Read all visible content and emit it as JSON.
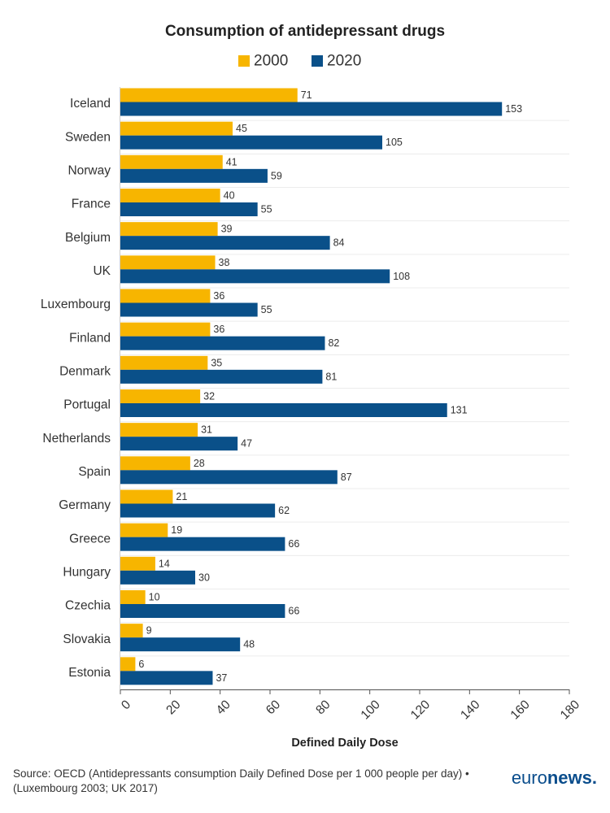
{
  "chart_data": {
    "type": "bar",
    "orientation": "horizontal",
    "title": "Consumption of antidepressant drugs",
    "xlabel": "Defined Daily Dose",
    "ylabel": "",
    "xlim": [
      0,
      180
    ],
    "ticks": [
      0,
      20,
      40,
      60,
      80,
      100,
      120,
      140,
      160,
      180
    ],
    "grid": true,
    "legend_position": "top-center",
    "categories": [
      "Iceland",
      "Sweden",
      "Norway",
      "France",
      "Belgium",
      "UK",
      "Luxembourg",
      "Finland",
      "Denmark",
      "Portugal",
      "Netherlands",
      "Spain",
      "Germany",
      "Greece",
      "Hungary",
      "Czechia",
      "Slovakia",
      "Estonia"
    ],
    "series": [
      {
        "name": "2000",
        "color": "#f7b500",
        "values": [
          71,
          45,
          41,
          40,
          39,
          38,
          36,
          36,
          35,
          32,
          31,
          28,
          21,
          19,
          14,
          10,
          9,
          6
        ]
      },
      {
        "name": "2020",
        "color": "#0a5089",
        "values": [
          153,
          105,
          59,
          55,
          84,
          108,
          55,
          82,
          81,
          131,
          47,
          87,
          62,
          66,
          30,
          66,
          48,
          37
        ]
      }
    ]
  },
  "footer": {
    "source": "Source: OECD (Antidepressants consumption Daily Defined Dose per 1 000 people per day) • (Luxembourg 2003; UK 2017)",
    "brand_regular": "euro",
    "brand_bold": "news."
  }
}
